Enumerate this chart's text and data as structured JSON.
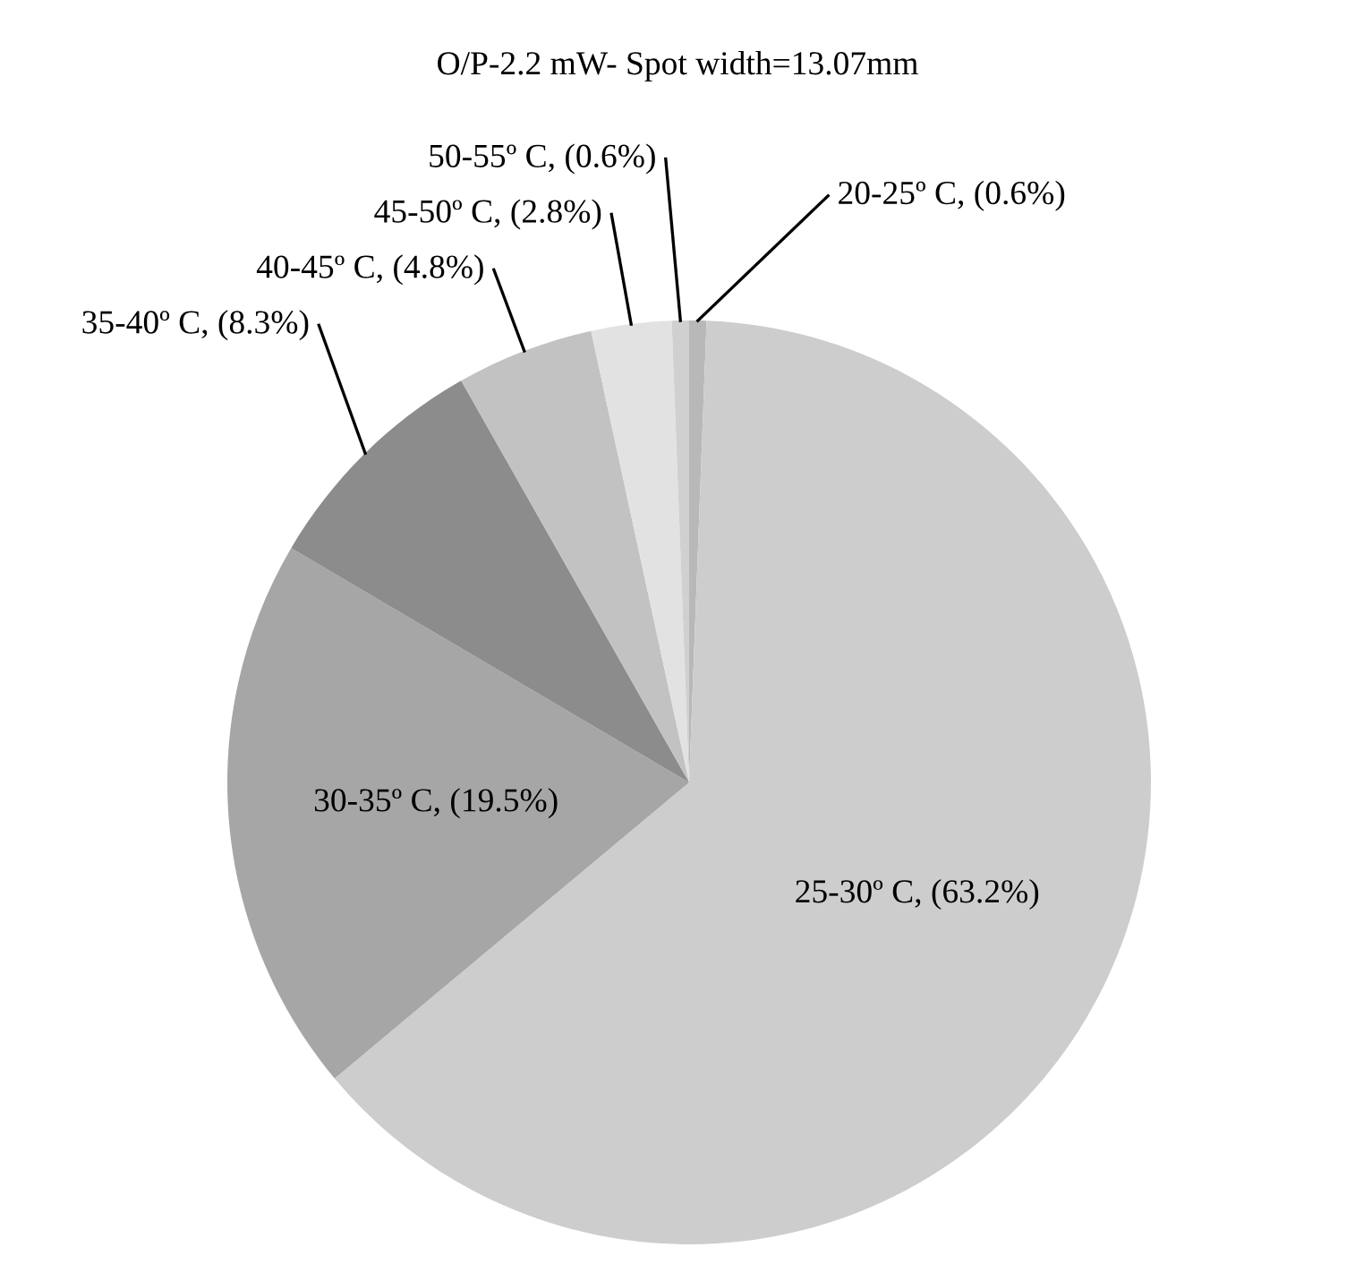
{
  "chart_data": {
    "type": "pie",
    "title": "O/P-2.2 mW- Spot width=13.07mm",
    "categories": [
      "20-25º C",
      "25-30º C",
      "30-35º C",
      "35-40º C",
      "40-45º C",
      "45-50º C",
      "50-55º C"
    ],
    "values": [
      0.6,
      63.2,
      19.5,
      8.3,
      4.8,
      2.8,
      0.6
    ],
    "value_labels": [
      "(0.6%)",
      "(63.2%)",
      "(19.5%)",
      "(8.3%)",
      "(4.8%)",
      "(2.8%)",
      "(0.6%)"
    ],
    "colors": [
      "#b8b8b8",
      "#cdcdcd",
      "#a6a6a6",
      "#8c8c8c",
      "#c2c2c2",
      "#e2e2e2",
      "#d0d0d0"
    ],
    "legend": false
  }
}
